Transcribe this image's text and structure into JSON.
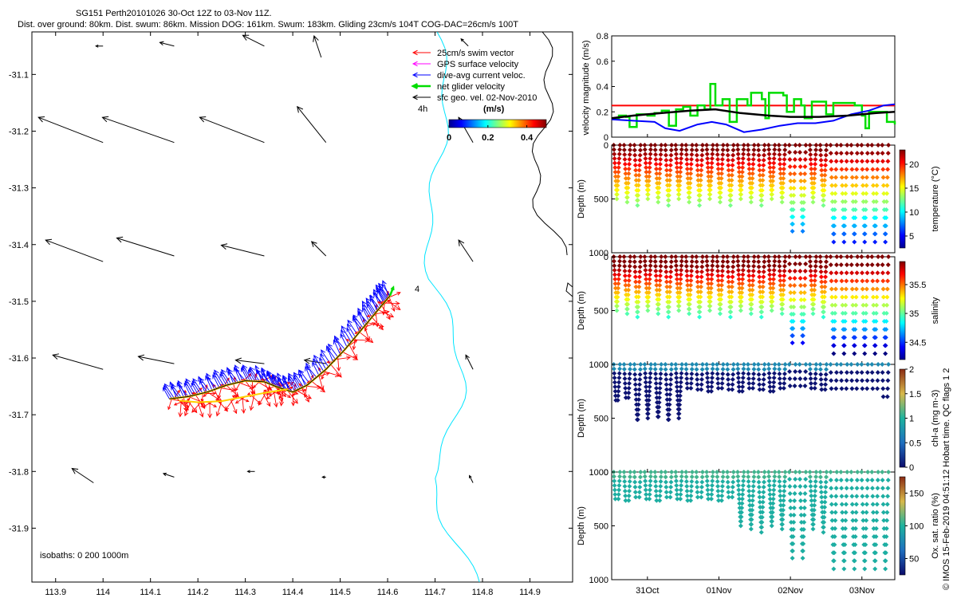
{
  "title": {
    "line1": "SG151 Perth20101026 30-Oct 12Z to 03-Nov 11Z.",
    "line2": "Dist. over ground: 80km. Dist. swum: 86km. Mission DOG: 161km. Swum: 183km. Gliding 23cm/s 104T COG-DAC=26cm/s 100T"
  },
  "colors": {
    "swim": "#ff0000",
    "gps": "#ff00ff",
    "dac": "#0000ff",
    "net": "#00dd00",
    "sfc": "#000000",
    "isobath_shallow": "#00e5ff",
    "isobath_deep": "#000000"
  },
  "map": {
    "xticks": [
      "113.9",
      "114",
      "114.1",
      "114.2",
      "114.3",
      "114.4",
      "114.5",
      "114.6",
      "114.7",
      "114.8",
      "114.9"
    ],
    "xtick_values": [
      113.9,
      114,
      114.1,
      114.2,
      114.3,
      114.4,
      114.5,
      114.6,
      114.7,
      114.8,
      114.9
    ],
    "yticks": [
      "-31.1",
      "-31.2",
      "-31.3",
      "-31.4",
      "-31.5",
      "-31.6",
      "-31.7",
      "-31.8",
      "-31.9"
    ],
    "ytick_values": [
      -31.1,
      -31.2,
      -31.3,
      -31.4,
      -31.5,
      -31.6,
      -31.7,
      -31.8,
      -31.9
    ],
    "xlim": [
      113.85,
      114.99
    ],
    "ylim": [
      -31.995,
      -31.025
    ],
    "legend": [
      {
        "label": "25cm/s swim vector",
        "key": "swim"
      },
      {
        "label": "GPS surface velocity",
        "key": "gps"
      },
      {
        "label": "dive-avg current veloc.",
        "key": "dac"
      },
      {
        "label": "net glider velocity",
        "key": "net"
      },
      {
        "label": "sfc geo. vel. 02-Nov-2010",
        "key": "sfc"
      }
    ],
    "scale_label": "4h",
    "colorbar_units": "(m/s)",
    "colorbar_ticks": [
      "0",
      "0.2",
      "0.4"
    ],
    "colorbar_tick_values": [
      0,
      0.2,
      0.4
    ],
    "colorbar_range": [
      0,
      0.5
    ],
    "end_label": "4",
    "isobath_label": "isobaths: 0   200   1000m",
    "track": [
      [
        114.14,
        -31.672
      ],
      [
        114.18,
        -31.668
      ],
      [
        114.22,
        -31.66
      ],
      [
        114.26,
        -31.648
      ],
      [
        114.3,
        -31.64
      ],
      [
        114.34,
        -31.642
      ],
      [
        114.37,
        -31.652
      ],
      [
        114.4,
        -31.66
      ],
      [
        114.43,
        -31.648
      ],
      [
        114.47,
        -31.62
      ],
      [
        114.51,
        -31.585
      ],
      [
        114.545,
        -31.55
      ],
      [
        114.57,
        -31.525
      ],
      [
        114.59,
        -31.505
      ],
      [
        114.605,
        -31.49
      ]
    ],
    "track2": [
      [
        114.16,
        -31.675
      ],
      [
        114.2,
        -31.678
      ],
      [
        114.25,
        -31.676
      ],
      [
        114.3,
        -31.668
      ],
      [
        114.35,
        -31.66
      ],
      [
        114.39,
        -31.655
      ]
    ],
    "geo_vectors": [
      {
        "lon": 114.0,
        "lat": -31.05,
        "u": -0.01,
        "v": 0.0
      },
      {
        "lon": 114.15,
        "lat": -31.05,
        "u": -0.02,
        "v": 0.005
      },
      {
        "lon": 114.34,
        "lat": -31.05,
        "u": -0.03,
        "v": 0.015
      },
      {
        "lon": 114.46,
        "lat": -31.07,
        "u": -0.01,
        "v": 0.03
      },
      {
        "lon": 114.77,
        "lat": -31.05,
        "u": -0.01,
        "v": 0.01
      },
      {
        "lon": 114.0,
        "lat": -31.22,
        "u": -0.09,
        "v": 0.035
      },
      {
        "lon": 114.15,
        "lat": -31.22,
        "u": -0.1,
        "v": 0.035
      },
      {
        "lon": 114.34,
        "lat": -31.22,
        "u": -0.09,
        "v": 0.035
      },
      {
        "lon": 114.47,
        "lat": -31.22,
        "u": -0.04,
        "v": 0.05
      },
      {
        "lon": 114.78,
        "lat": -31.22,
        "u": -0.02,
        "v": 0.035
      },
      {
        "lon": 114.0,
        "lat": -31.43,
        "u": -0.08,
        "v": 0.03
      },
      {
        "lon": 114.15,
        "lat": -31.42,
        "u": -0.08,
        "v": 0.025
      },
      {
        "lon": 114.34,
        "lat": -31.42,
        "u": -0.06,
        "v": 0.015
      },
      {
        "lon": 114.47,
        "lat": -31.42,
        "u": -0.02,
        "v": 0.02
      },
      {
        "lon": 114.78,
        "lat": -31.43,
        "u": -0.02,
        "v": 0.03
      },
      {
        "lon": 114.0,
        "lat": -31.62,
        "u": -0.07,
        "v": 0.02
      },
      {
        "lon": 114.15,
        "lat": -31.61,
        "u": -0.05,
        "v": 0.01
      },
      {
        "lon": 114.34,
        "lat": -31.61,
        "u": -0.04,
        "v": 0.005
      },
      {
        "lon": 114.47,
        "lat": -31.61,
        "u": -0.03,
        "v": 0.005
      },
      {
        "lon": 114.78,
        "lat": -31.62,
        "u": -0.01,
        "v": 0.02
      },
      {
        "lon": 113.98,
        "lat": -31.82,
        "u": -0.03,
        "v": 0.02
      },
      {
        "lon": 114.15,
        "lat": -31.81,
        "u": -0.015,
        "v": 0.005
      },
      {
        "lon": 114.32,
        "lat": -31.8,
        "u": -0.01,
        "v": 0.0
      },
      {
        "lon": 114.47,
        "lat": -31.81,
        "u": -0.005,
        "v": 0.0
      },
      {
        "lon": 114.78,
        "lat": -31.82,
        "u": -0.005,
        "v": 0.01
      }
    ]
  },
  "time_axis": {
    "ticks": [
      "31Oct",
      "01Nov",
      "02Nov",
      "03Nov"
    ],
    "tick_days": [
      1,
      2,
      3,
      4
    ],
    "xlim_days": [
      0.5,
      4.46
    ]
  },
  "velocity_panel": {
    "ylabel": "velocity magnitude (m/s)",
    "yticks": [
      "0",
      "0.2",
      "0.4",
      "0.6",
      "0.8"
    ],
    "ytick_values": [
      0,
      0.2,
      0.4,
      0.6,
      0.8
    ],
    "ylim": [
      0,
      0.8
    ],
    "ref_value": 0.25,
    "blue": [
      [
        0.5,
        0.14
      ],
      [
        0.8,
        0.13
      ],
      [
        1.1,
        0.12
      ],
      [
        1.25,
        0.07
      ],
      [
        1.45,
        0.05
      ],
      [
        1.7,
        0.1
      ],
      [
        1.9,
        0.12
      ],
      [
        2.1,
        0.1
      ],
      [
        2.35,
        0.04
      ],
      [
        2.6,
        0.06
      ],
      [
        2.85,
        0.09
      ],
      [
        3.1,
        0.11
      ],
      [
        3.35,
        0.11
      ],
      [
        3.6,
        0.13
      ],
      [
        3.85,
        0.18
      ],
      [
        4.1,
        0.21
      ],
      [
        4.3,
        0.25
      ],
      [
        4.46,
        0.26
      ]
    ],
    "black": [
      [
        0.5,
        0.15
      ],
      [
        0.8,
        0.17
      ],
      [
        1.2,
        0.19
      ],
      [
        1.6,
        0.21
      ],
      [
        1.95,
        0.22
      ],
      [
        2.3,
        0.19
      ],
      [
        2.7,
        0.17
      ],
      [
        3.0,
        0.16
      ],
      [
        3.4,
        0.16
      ],
      [
        3.8,
        0.17
      ],
      [
        4.2,
        0.19
      ],
      [
        4.46,
        0.2
      ]
    ],
    "green": [
      [
        0.5,
        0.15
      ],
      [
        0.6,
        0.17
      ],
      [
        0.7,
        0.16
      ],
      [
        0.75,
        0.08
      ],
      [
        0.85,
        0.18
      ],
      [
        1.0,
        0.17
      ],
      [
        1.1,
        0.19
      ],
      [
        1.2,
        0.21
      ],
      [
        1.3,
        0.09
      ],
      [
        1.4,
        0.22
      ],
      [
        1.5,
        0.24
      ],
      [
        1.6,
        0.17
      ],
      [
        1.7,
        0.25
      ],
      [
        1.8,
        0.22
      ],
      [
        1.88,
        0.42
      ],
      [
        1.95,
        0.25
      ],
      [
        2.05,
        0.3
      ],
      [
        2.15,
        0.12
      ],
      [
        2.25,
        0.3
      ],
      [
        2.4,
        0.25
      ],
      [
        2.45,
        0.35
      ],
      [
        2.6,
        0.3
      ],
      [
        2.65,
        0.15
      ],
      [
        2.7,
        0.35
      ],
      [
        2.9,
        0.33
      ],
      [
        2.95,
        0.2
      ],
      [
        3.05,
        0.3
      ],
      [
        3.15,
        0.25
      ],
      [
        3.2,
        0.15
      ],
      [
        3.3,
        0.28
      ],
      [
        3.45,
        0.28
      ],
      [
        3.5,
        0.18
      ],
      [
        3.6,
        0.27
      ],
      [
        3.9,
        0.25
      ],
      [
        4.0,
        0.17
      ],
      [
        4.05,
        0.07
      ],
      [
        4.1,
        0.2
      ],
      [
        4.3,
        0.2
      ],
      [
        4.35,
        0.12
      ],
      [
        4.46,
        0.1
      ]
    ]
  },
  "profile_panels": [
    {
      "ylabel": "Depth (m)",
      "clabel": "temperature (°C)",
      "cticks": [
        "5",
        "10",
        "15",
        "20"
      ],
      "ctick_values": [
        5,
        10,
        15,
        20
      ],
      "crange": [
        2.5,
        23
      ],
      "shallow_offset": 0.0,
      "base_depth": 250,
      "deep_profiles": true,
      "var": "temp"
    },
    {
      "ylabel": "Depth (m)",
      "clabel": "salinity",
      "cticks": [
        "34.5",
        "35",
        "35.5"
      ],
      "ctick_values": [
        34.5,
        35,
        35.5
      ],
      "crange": [
        34.2,
        35.9
      ],
      "shallow_offset": 0.0,
      "base_depth": 250,
      "deep_profiles": true,
      "var": "sal"
    },
    {
      "ylabel": "Depth (m)",
      "clabel": "chl-a (mg m-3)",
      "cticks": [
        "0",
        "0.5",
        "1",
        "1.5",
        "2"
      ],
      "ctick_values": [
        0,
        0.5,
        1,
        1.5,
        2
      ],
      "crange": [
        0,
        2
      ],
      "var": "chl"
    },
    {
      "ylabel": "Depth (m)",
      "clabel": "Ox. sat. ratio (%)",
      "cticks": [
        "50",
        "100",
        "150"
      ],
      "ctick_values": [
        50,
        100,
        150
      ],
      "crange": [
        25,
        175
      ],
      "var": "ox"
    }
  ],
  "depth_ticks": [
    "0",
    "500",
    "1000"
  ],
  "depth_tick_values": [
    0,
    500,
    1000
  ],
  "depth_range": [
    0,
    1000
  ],
  "credit": "© IMOS 15-Feb-2019 04:51:12 Hobart time. QC flags 1  2"
}
